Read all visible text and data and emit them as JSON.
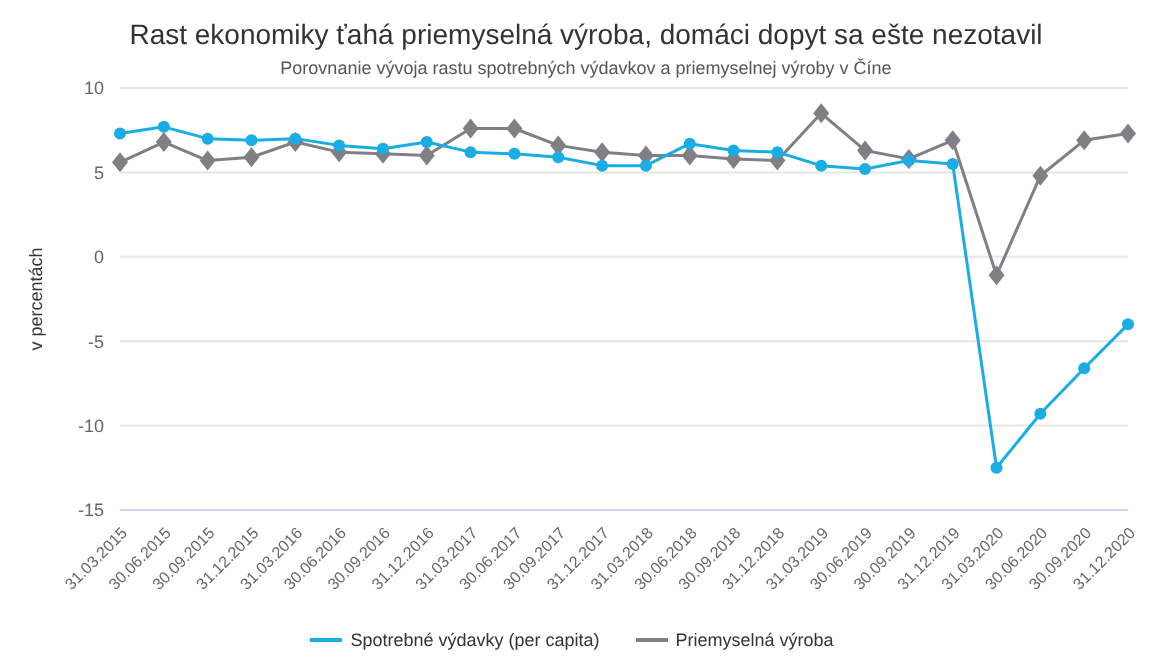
{
  "chart_data": {
    "type": "line",
    "title": "Rast ekonomiky ťahá priemyselná výroba, domáci dopyt sa ešte nezotavil",
    "subtitle": "Porovnanie vývoja rastu spotrebných výdavkov a priemyselnej výroby v Číne",
    "ylabel": "v percentách",
    "categories": [
      "31.03.2015",
      "30.06.2015",
      "30.09.2015",
      "31.12.2015",
      "31.03.2016",
      "30.06.2016",
      "30.09.2016",
      "31.12.2016",
      "31.03.2017",
      "30.06.2017",
      "30.09.2017",
      "31.12.2017",
      "31.03.2018",
      "30.06.2018",
      "30.09.2018",
      "31.12.2018",
      "31.03.2019",
      "30.06.2019",
      "30.09.2019",
      "31.12.2019",
      "31.03.2020",
      "30.06.2020",
      "30.09.2020",
      "31.12.2020"
    ],
    "series": [
      {
        "name": "Spotrebné výdavky (per capita)",
        "color": "#1aade4",
        "marker": "circle",
        "values": [
          7.3,
          7.7,
          7.0,
          6.9,
          7.0,
          6.6,
          6.4,
          6.8,
          6.2,
          6.1,
          5.9,
          5.4,
          5.4,
          6.7,
          6.3,
          6.2,
          5.4,
          5.2,
          5.7,
          5.5,
          -12.5,
          -9.3,
          -6.6,
          -4.0
        ]
      },
      {
        "name": "Priemyselná výroba",
        "color": "#7f7f86",
        "marker": "diamond",
        "values": [
          5.6,
          6.8,
          5.7,
          5.9,
          6.8,
          6.2,
          6.1,
          6.0,
          7.6,
          7.6,
          6.6,
          6.2,
          6.0,
          6.0,
          5.8,
          5.7,
          8.5,
          6.3,
          5.8,
          6.9,
          -1.1,
          4.8,
          6.9,
          7.3
        ]
      }
    ],
    "ylim": [
      -15,
      10
    ],
    "yticks": [
      -15,
      -10,
      -5,
      0,
      5,
      10
    ],
    "grid": "y",
    "legend": "bottom",
    "line_style": "solid"
  }
}
